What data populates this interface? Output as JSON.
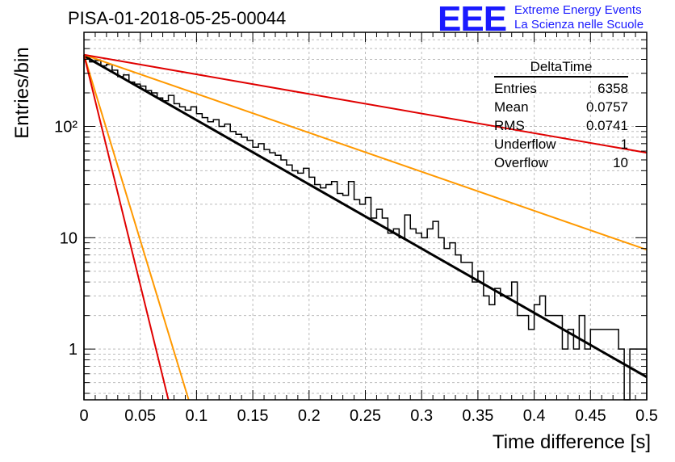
{
  "header": {
    "title": "PISA-01-2018-05-25-00044",
    "logo": "EEE",
    "logo_line1": "Extreme Energy Events",
    "logo_line2": "La Scienza nelle Scuole"
  },
  "stats_box": {
    "name": "DeltaTime",
    "rows": [
      {
        "label": "Entries",
        "value": "6358"
      },
      {
        "label": "Mean",
        "value": "0.0757"
      },
      {
        "label": "RMS",
        "value": "0.0741"
      },
      {
        "label": "Underflow",
        "value": "1"
      },
      {
        "label": "Overflow",
        "value": "10"
      }
    ]
  },
  "chart_data": {
    "type": "histogram",
    "title": "PISA-01-2018-05-25-00044",
    "xlabel": "Time difference [s]",
    "ylabel": "Entries/bin",
    "xlim": [
      0,
      0.5
    ],
    "ylim": [
      0.35,
      700
    ],
    "yscale": "log",
    "grid": true,
    "xticks": [
      "0",
      "0.05",
      "0.1",
      "0.15",
      "0.2",
      "0.25",
      "0.3",
      "0.35",
      "0.4",
      "0.45",
      "0.5"
    ],
    "yticks": [
      {
        "value": 1,
        "label": "1"
      },
      {
        "value": 10,
        "label": "10"
      },
      {
        "value": 100,
        "label": "10²"
      }
    ],
    "bin_width": 0.005,
    "histogram_values": [
      430,
      380,
      390,
      350,
      360,
      320,
      280,
      290,
      250,
      240,
      230,
      210,
      200,
      180,
      170,
      190,
      160,
      150,
      140,
      150,
      130,
      120,
      110,
      115,
      100,
      105,
      90,
      85,
      80,
      75,
      65,
      70,
      62,
      58,
      55,
      50,
      45,
      40,
      38,
      42,
      35,
      30,
      28,
      30,
      32,
      25,
      24,
      32,
      22,
      20,
      23,
      15,
      18,
      15,
      11,
      12,
      10,
      16,
      12,
      11,
      10,
      12,
      14,
      10,
      8,
      9,
      7,
      6,
      6,
      4,
      5,
      3,
      2.5,
      3.5,
      3,
      3,
      4,
      2,
      2,
      1.5,
      2.5,
      3,
      2,
      2,
      2,
      1,
      1.5,
      1,
      2,
      1,
      1.5,
      1.5,
      1.5,
      1.5,
      1.5,
      1,
      0.3,
      1,
      1,
      1
    ],
    "series": [
      {
        "type": "fit",
        "color": "#000000",
        "y0": 430,
        "y_end": 0.56
      },
      {
        "type": "reference",
        "color": "#ff9900",
        "y0": 440,
        "y_end": 7.8
      },
      {
        "type": "reference",
        "color": "#e00000",
        "y0": 440,
        "y_end": 58
      },
      {
        "type": "reference",
        "color": "#ff9900",
        "y0": 440,
        "x_at_0_3": 0.093
      },
      {
        "type": "reference",
        "color": "#e00000",
        "y0": 440,
        "x_at_0_3": 0.075
      }
    ]
  }
}
